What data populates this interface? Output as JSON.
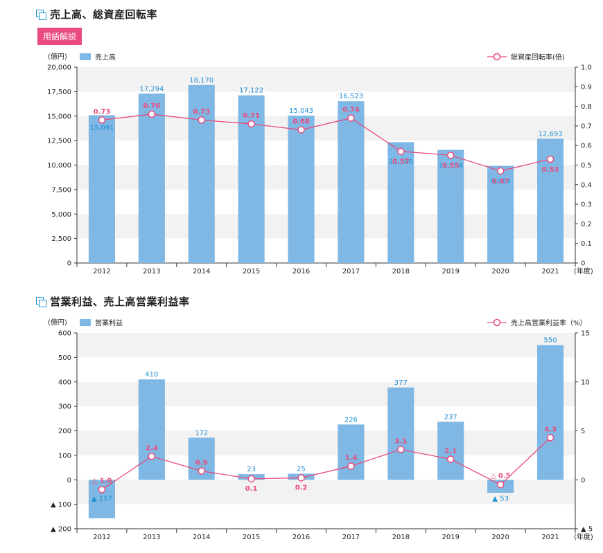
{
  "section1": {
    "title": "売上高、総資産回転率",
    "glossary_button": "用語解説"
  },
  "section2": {
    "title": "営業利益、売上高営業利益率"
  },
  "colors": {
    "bar": "#7fb8e4",
    "line": "#e94b7e",
    "band": "#f2f2f2",
    "label_blue": "#1e8fd5"
  },
  "chart_data": [
    {
      "type": "bar",
      "title": "売上高、総資産回転率",
      "categories": [
        "2012",
        "2013",
        "2014",
        "2015",
        "2016",
        "2017",
        "2018",
        "2019",
        "2020",
        "2021"
      ],
      "x_unit": "(年度)",
      "left_unit": "(億円)",
      "right_unit": "",
      "bar_legend": "売上高",
      "line_legend": "総資産回転率(倍)",
      "ylim": [
        0,
        20000
      ],
      "y_ticks": [
        0,
        2500,
        5000,
        7500,
        10000,
        12500,
        15000,
        17500,
        20000
      ],
      "y_tick_labels": [
        "0",
        "2,500",
        "5,000",
        "7,500",
        "10,000",
        "12,500",
        "15,000",
        "17,500",
        "20,000"
      ],
      "y2lim": [
        0,
        1.0
      ],
      "y2_ticks": [
        0,
        0.1,
        0.2,
        0.3,
        0.4,
        0.5,
        0.6,
        0.7,
        0.8,
        0.9,
        1.0
      ],
      "y2_tick_labels": [
        "0",
        "0.1",
        "0.2",
        "0.3",
        "0.4",
        "0.5",
        "0.6",
        "0.7",
        "0.8",
        "0.9",
        "1.0"
      ],
      "series": [
        {
          "name": "売上高",
          "type": "bar",
          "values": [
            15091,
            17294,
            18170,
            17122,
            15043,
            16523,
            12340,
            11554,
            9914,
            12693
          ],
          "labels": [
            "15,091",
            "17,294",
            "18,170",
            "17,122",
            "15,043",
            "16,523",
            "12,340",
            "11,554",
            "9,914",
            "12,693"
          ]
        },
        {
          "name": "総資産回転率",
          "type": "line",
          "axis": "right",
          "values": [
            0.73,
            0.76,
            0.73,
            0.71,
            0.68,
            0.74,
            0.57,
            0.55,
            0.47,
            0.53
          ],
          "labels": [
            "0.73",
            "0.76",
            "0.73",
            "0.71",
            "0.68",
            "0.74",
            "0.57",
            "0.55",
            "0.47",
            "0.53"
          ]
        }
      ]
    },
    {
      "type": "bar",
      "title": "営業利益、売上高営業利益率",
      "categories": [
        "2012",
        "2013",
        "2014",
        "2015",
        "2016",
        "2017",
        "2018",
        "2019",
        "2020",
        "2021"
      ],
      "x_unit": "(年度)",
      "left_unit": "(億円)",
      "bar_legend": "営業利益",
      "line_legend": "売上高営業利益率（%）",
      "ylim": [
        -200,
        600
      ],
      "y_ticks": [
        -200,
        -100,
        0,
        100,
        200,
        300,
        400,
        500,
        600
      ],
      "y_tick_labels": [
        "▲ 200",
        "▲ 100",
        "0",
        "100",
        "200",
        "300",
        "400",
        "500",
        "600"
      ],
      "y2lim": [
        -5,
        15
      ],
      "y2_ticks": [
        -5,
        0,
        5,
        10,
        15
      ],
      "y2_tick_labels": [
        "▲ 5",
        "0",
        "5",
        "10",
        "15"
      ],
      "series": [
        {
          "name": "営業利益",
          "type": "bar",
          "values": [
            -157,
            410,
            172,
            23,
            25,
            226,
            377,
            237,
            -53,
            550
          ],
          "labels": [
            "▲ 157",
            "410",
            "172",
            "23",
            "25",
            "226",
            "377",
            "237",
            "▲ 53",
            "550"
          ]
        },
        {
          "name": "売上高営業利益率",
          "type": "line",
          "axis": "right",
          "values": [
            -1.0,
            2.4,
            0.9,
            0.1,
            0.2,
            1.4,
            3.1,
            2.1,
            -0.5,
            4.3
          ],
          "labels": [
            "△ 1.0",
            "2.4",
            "0.9",
            "0.1",
            "0.2",
            "1.4",
            "3.1",
            "2.1",
            "△ 0.5",
            "4.3"
          ]
        }
      ]
    }
  ]
}
